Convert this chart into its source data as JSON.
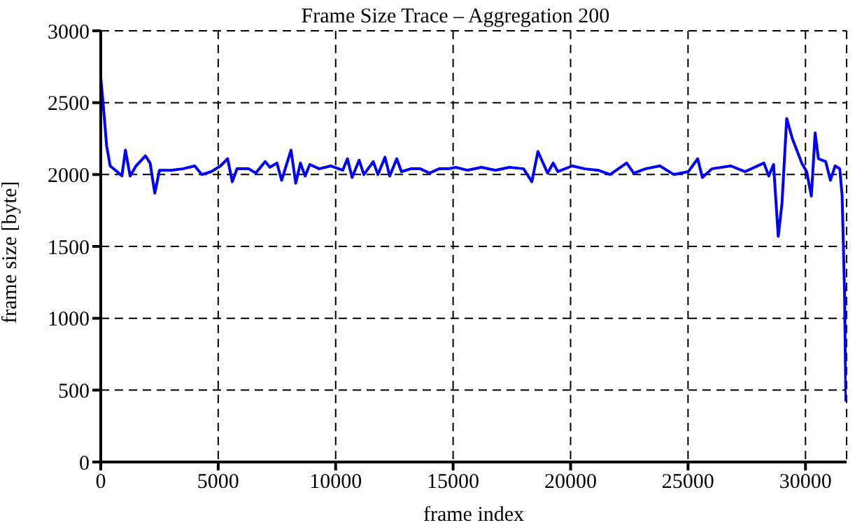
{
  "chart_data": {
    "type": "line",
    "title": "Frame Size Trace – Aggregation 200",
    "xlabel": "frame index",
    "ylabel": "frame size [byte]",
    "x": [
      0,
      150,
      250,
      400,
      700,
      900,
      1050,
      1250,
      1500,
      1900,
      2100,
      2300,
      2500,
      3000,
      3500,
      4000,
      4300,
      4700,
      5100,
      5400,
      5600,
      5800,
      6300,
      6600,
      7000,
      7200,
      7500,
      7700,
      8100,
      8300,
      8500,
      8700,
      8900,
      9300,
      9800,
      10300,
      10500,
      10700,
      11000,
      11200,
      11600,
      11800,
      12100,
      12300,
      12600,
      12800,
      13200,
      13600,
      14000,
      14400,
      14800,
      15125,
      15600,
      16200,
      16800,
      17400,
      18000,
      18350,
      18610,
      19020,
      19260,
      19460,
      20070,
      20600,
      21175,
      21680,
      22385,
      22690,
      23190,
      23800,
      24400,
      25010,
      25410,
      25610,
      26015,
      26820,
      27420,
      28230,
      28435,
      28640,
      28840,
      29000,
      29200,
      29440,
      29840,
      30050,
      30250,
      30410,
      30550,
      30860,
      31060,
      31260,
      31460,
      31560,
      31660,
      31720
    ],
    "series": [
      {
        "color": "#0000ff",
        "values": [
          2680,
          2400,
          2200,
          2060,
          2020,
          1990,
          2170,
          1990,
          2060,
          2130,
          2080,
          1870,
          2030,
          2030,
          2040,
          2060,
          2000,
          2020,
          2060,
          2110,
          1950,
          2040,
          2040,
          2010,
          2090,
          2050,
          2080,
          1960,
          2170,
          1940,
          2080,
          1990,
          2070,
          2040,
          2060,
          2030,
          2110,
          1980,
          2100,
          2000,
          2090,
          2000,
          2120,
          1990,
          2110,
          2020,
          2040,
          2040,
          2010,
          2040,
          2040,
          2050,
          2030,
          2050,
          2030,
          2050,
          2040,
          1950,
          2160,
          2010,
          2080,
          2020,
          2060,
          2040,
          2030,
          2000,
          2080,
          2010,
          2040,
          2060,
          2000,
          2020,
          2110,
          1980,
          2040,
          2060,
          2020,
          2080,
          1990,
          2070,
          1570,
          1800,
          2390,
          2250,
          2080,
          2020,
          1850,
          2290,
          2110,
          2090,
          1960,
          2060,
          2040,
          1850,
          1200,
          420
        ]
      }
    ],
    "xlim": [
      0,
      31750
    ],
    "xticks": [
      0,
      5000,
      10000,
      15000,
      20000,
      25000,
      30000
    ],
    "ylim": [
      0,
      3000
    ],
    "yticks": [
      0,
      500,
      1000,
      1500,
      2000,
      2500,
      3000
    ],
    "grid": true,
    "legend": false,
    "marker": "none",
    "line_style": "solid"
  }
}
